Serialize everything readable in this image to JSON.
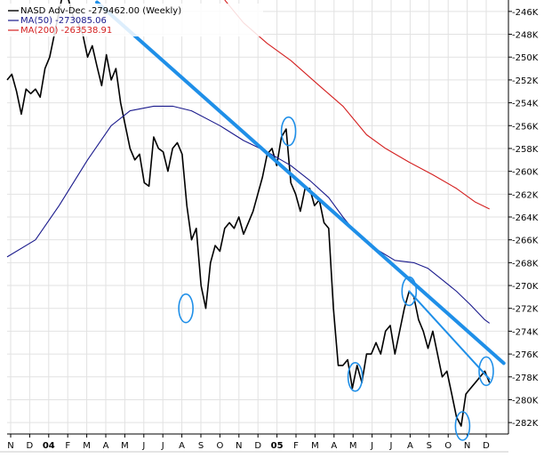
{
  "chart_data": {
    "type": "line",
    "ylim": [
      -283,
      -245
    ],
    "y_ticks": [
      -246,
      -248,
      -250,
      -252,
      -254,
      -256,
      -258,
      -260,
      -262,
      -264,
      -266,
      -268,
      -270,
      -272,
      -274,
      -276,
      -278,
      -280,
      -282
    ],
    "y_tick_labels": [
      "-246K",
      "-248K",
      "-250K",
      "-252K",
      "-254K",
      "-256K",
      "-258K",
      "-260K",
      "-262K",
      "-264K",
      "-266K",
      "-268K",
      "-270K",
      "-272K",
      "-274K",
      "-276K",
      "-278K",
      "-280K",
      "-282K"
    ],
    "x_tick_labels": [
      "N",
      "D",
      "04",
      "F",
      "M",
      "A",
      "M",
      "J",
      "J",
      "A",
      "S",
      "O",
      "N",
      "D",
      "05",
      "F",
      "M",
      "A",
      "M",
      "J",
      "J",
      "A",
      "S",
      "O",
      "N",
      "D"
    ],
    "x_bold": [
      "04",
      "05"
    ],
    "grid": true,
    "series": [
      {
        "name": "NASD Adv-Dec",
        "color": "#000000",
        "legend_label": "NASD Adv-Dec -279462.00 (Weekly)",
        "points": [
          [
            0,
            -252.0
          ],
          [
            1,
            -251.5
          ],
          [
            2,
            -253.0
          ],
          [
            3,
            -255.0
          ],
          [
            4,
            -252.8
          ],
          [
            5,
            -253.2
          ],
          [
            6,
            -252.8
          ],
          [
            7,
            -253.5
          ],
          [
            8,
            -251.0
          ],
          [
            9,
            -250.0
          ],
          [
            10,
            -248.0
          ],
          [
            11,
            -246.0
          ],
          [
            12,
            -244.0
          ],
          [
            13,
            -245.0
          ],
          [
            14,
            -246.5
          ],
          [
            15,
            -247.0
          ],
          [
            16,
            -248.0
          ],
          [
            17,
            -250.0
          ],
          [
            18,
            -249.0
          ],
          [
            19,
            -250.8
          ],
          [
            20,
            -252.5
          ],
          [
            21,
            -249.8
          ],
          [
            22,
            -252.0
          ],
          [
            23,
            -251.0
          ],
          [
            24,
            -254.0
          ],
          [
            25,
            -256.0
          ],
          [
            26,
            -258.0
          ],
          [
            27,
            -259.0
          ],
          [
            28,
            -258.5
          ],
          [
            29,
            -261.0
          ],
          [
            30,
            -261.3
          ],
          [
            31,
            -257.0
          ],
          [
            32,
            -258.0
          ],
          [
            33,
            -258.3
          ],
          [
            34,
            -260.0
          ],
          [
            35,
            -258.0
          ],
          [
            36,
            -257.5
          ],
          [
            37,
            -258.5
          ],
          [
            38,
            -263.0
          ],
          [
            39,
            -266.0
          ],
          [
            40,
            -265.0
          ],
          [
            41,
            -270.0
          ],
          [
            42,
            -272.0
          ],
          [
            43,
            -268.0
          ],
          [
            44,
            -266.5
          ],
          [
            45,
            -267.0
          ],
          [
            46,
            -265.0
          ],
          [
            47,
            -264.5
          ],
          [
            48,
            -265.0
          ],
          [
            49,
            -264.0
          ],
          [
            50,
            -265.5
          ],
          [
            51,
            -264.5
          ],
          [
            52,
            -263.5
          ],
          [
            53,
            -262.0
          ],
          [
            54,
            -260.5
          ],
          [
            55,
            -258.5
          ],
          [
            56,
            -258.0
          ],
          [
            57,
            -259.5
          ],
          [
            58,
            -257.0
          ],
          [
            59,
            -256.3
          ],
          [
            60,
            -261.0
          ],
          [
            61,
            -262.0
          ],
          [
            62,
            -263.5
          ],
          [
            63,
            -261.5
          ],
          [
            64,
            -261.5
          ],
          [
            65,
            -263.0
          ],
          [
            66,
            -262.5
          ],
          [
            67,
            -264.5
          ],
          [
            68,
            -265.0
          ],
          [
            69,
            -272.0
          ],
          [
            70,
            -277.0
          ],
          [
            71,
            -277.0
          ],
          [
            72,
            -276.5
          ],
          [
            73,
            -279.0
          ],
          [
            74,
            -277.0
          ],
          [
            75,
            -278.5
          ],
          [
            76,
            -276.0
          ],
          [
            77,
            -276.0
          ],
          [
            78,
            -275.0
          ],
          [
            79,
            -276.0
          ],
          [
            80,
            -274.0
          ],
          [
            81,
            -273.5
          ],
          [
            82,
            -276.0
          ],
          [
            83,
            -274.0
          ],
          [
            84,
            -272.0
          ],
          [
            85,
            -270.5
          ],
          [
            86,
            -271.0
          ],
          [
            87,
            -273.0
          ],
          [
            88,
            -274.0
          ],
          [
            89,
            -275.5
          ],
          [
            90,
            -274.0
          ],
          [
            91,
            -276.0
          ],
          [
            92,
            -278.0
          ],
          [
            93,
            -277.5
          ],
          [
            94,
            -279.5
          ],
          [
            95,
            -281.5
          ],
          [
            96,
            -282.3
          ],
          [
            97,
            -279.5
          ],
          [
            98,
            -279.0
          ],
          [
            99,
            -278.5
          ],
          [
            100,
            -278.0
          ],
          [
            101,
            -277.5
          ],
          [
            102,
            -278.5
          ]
        ]
      },
      {
        "name": "MA(50)",
        "color": "#1a1a8c",
        "legend_label": "MA(50) -273085.06",
        "points": [
          [
            0,
            -267.5
          ],
          [
            6,
            -266.0
          ],
          [
            11,
            -263.0
          ],
          [
            17,
            -259.0
          ],
          [
            22,
            -256.0
          ],
          [
            26,
            -254.7
          ],
          [
            31,
            -254.3
          ],
          [
            35,
            -254.3
          ],
          [
            39,
            -254.7
          ],
          [
            45,
            -256.0
          ],
          [
            50,
            -257.3
          ],
          [
            55,
            -258.3
          ],
          [
            60,
            -259.5
          ],
          [
            64,
            -260.8
          ],
          [
            68,
            -262.3
          ],
          [
            71,
            -264.0
          ],
          [
            74,
            -265.5
          ],
          [
            78,
            -266.8
          ],
          [
            82,
            -267.8
          ],
          [
            86,
            -268.0
          ],
          [
            89,
            -268.5
          ],
          [
            92,
            -269.5
          ],
          [
            95,
            -270.5
          ],
          [
            98,
            -271.7
          ],
          [
            101,
            -273.0
          ],
          [
            102,
            -273.3
          ]
        ]
      },
      {
        "name": "MA(200)",
        "color": "#d42020",
        "legend_label": "MA(200) -263538.91",
        "points": [
          [
            46,
            -245.0
          ],
          [
            50,
            -247.0
          ],
          [
            55,
            -248.8
          ],
          [
            60,
            -250.3
          ],
          [
            66,
            -252.5
          ],
          [
            71,
            -254.3
          ],
          [
            76,
            -256.8
          ],
          [
            80,
            -258.0
          ],
          [
            85,
            -259.2
          ],
          [
            90,
            -260.3
          ],
          [
            95,
            -261.5
          ],
          [
            99,
            -262.7
          ],
          [
            102,
            -263.3
          ]
        ]
      }
    ],
    "trendlines": [
      {
        "color": "#1f8fe8",
        "points": [
          [
            19,
            -245.2
          ],
          [
            105,
            -276.8
          ]
        ]
      },
      {
        "color": "#1f8fe8",
        "points": [
          [
            85,
            -270.5
          ],
          [
            102,
            -278.2
          ]
        ]
      }
    ],
    "highlights": [
      {
        "color": "#1f8fe8",
        "at": [
          37.8,
          -272.0
        ]
      },
      {
        "color": "#1f8fe8",
        "at": [
          59.5,
          -256.5
        ]
      },
      {
        "color": "#1f8fe8",
        "at": [
          73.6,
          -278.0
        ]
      },
      {
        "color": "#1f8fe8",
        "at": [
          85,
          -270.5
        ]
      },
      {
        "color": "#1f8fe8",
        "at": [
          96.3,
          -282.3
        ]
      },
      {
        "color": "#1f8fe8",
        "at": [
          101.3,
          -277.5
        ]
      }
    ]
  },
  "legend": {
    "main_label": "NASD Adv-Dec -279462.00 (Weekly)",
    "ma50_label": "MA(50) -273085.06",
    "ma200_label": "MA(200) -263538.91"
  }
}
